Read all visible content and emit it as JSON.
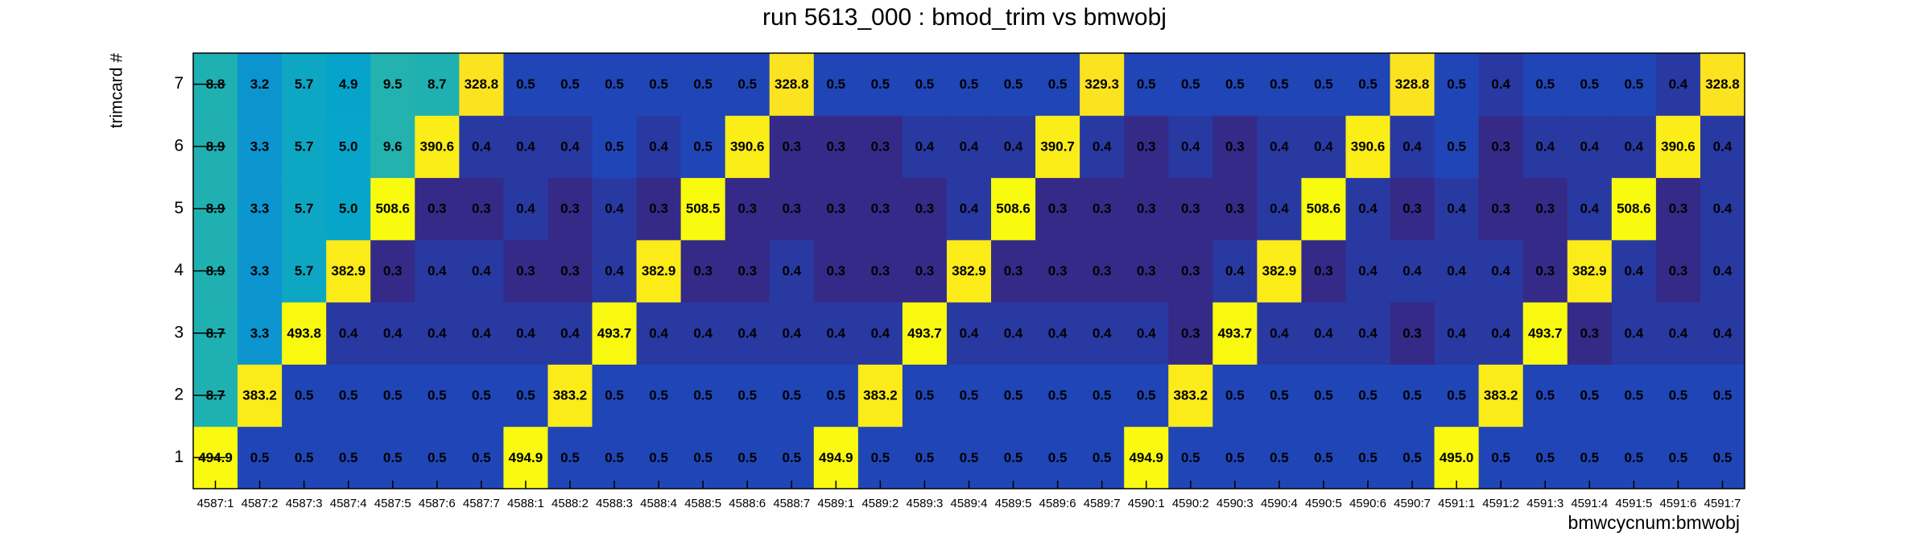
{
  "chart_data": {
    "type": "heatmap",
    "title": "run 5613_000 : bmod_trim vs bmwobj",
    "x_label": "bmwcycnum:bmwobj",
    "y_label": "trimcard #",
    "x": [
      "4587:1",
      "4587:2",
      "4587:3",
      "4587:4",
      "4587:5",
      "4587:6",
      "4587:7",
      "4588:1",
      "4588:2",
      "4588:3",
      "4588:4",
      "4588:5",
      "4588:6",
      "4588:7",
      "4589:1",
      "4589:2",
      "4589:3",
      "4589:4",
      "4589:5",
      "4589:6",
      "4589:7",
      "4590:1",
      "4590:2",
      "4590:3",
      "4590:4",
      "4590:5",
      "4590:6",
      "4590:7",
      "4591:1",
      "4591:2",
      "4591:3",
      "4591:4",
      "4591:5",
      "4591:6",
      "4591:7"
    ],
    "y": [
      1,
      2,
      3,
      4,
      5,
      6,
      7
    ],
    "log_z": true,
    "palette": [
      "#352a87",
      "#0f5cdd",
      "#1481d6",
      "#06a4ca",
      "#2eb7a4",
      "#87bf77",
      "#d1bb59",
      "#fec832",
      "#f9fb0e"
    ],
    "values": [
      [
        494.9,
        0.5,
        0.5,
        0.5,
        0.5,
        0.5,
        0.5,
        494.9,
        0.5,
        0.5,
        0.5,
        0.5,
        0.5,
        0.5,
        494.9,
        0.5,
        0.5,
        0.5,
        0.5,
        0.5,
        0.5,
        494.9,
        0.5,
        0.5,
        0.5,
        0.5,
        0.5,
        0.5,
        495.0,
        0.5,
        0.5,
        0.5,
        0.5,
        0.5,
        0.5
      ],
      [
        8.7,
        383.2,
        0.5,
        0.5,
        0.5,
        0.5,
        0.5,
        0.5,
        383.2,
        0.5,
        0.5,
        0.5,
        0.5,
        0.5,
        0.5,
        383.2,
        0.5,
        0.5,
        0.5,
        0.5,
        0.5,
        0.5,
        383.2,
        0.5,
        0.5,
        0.5,
        0.5,
        0.5,
        0.5,
        383.2,
        0.5,
        0.5,
        0.5,
        0.5,
        0.5
      ],
      [
        8.7,
        3.3,
        493.8,
        0.4,
        0.4,
        0.4,
        0.4,
        0.4,
        0.4,
        493.7,
        0.4,
        0.4,
        0.4,
        0.4,
        0.4,
        0.4,
        493.7,
        0.4,
        0.4,
        0.4,
        0.4,
        0.4,
        0.3,
        493.7,
        0.4,
        0.4,
        0.4,
        0.3,
        0.4,
        0.4,
        493.7,
        0.3,
        0.4,
        0.4,
        0.4
      ],
      [
        8.9,
        3.3,
        5.7,
        382.9,
        0.3,
        0.4,
        0.4,
        0.3,
        0.3,
        0.4,
        382.9,
        0.3,
        0.3,
        0.4,
        0.3,
        0.3,
        0.3,
        382.9,
        0.3,
        0.3,
        0.3,
        0.3,
        0.3,
        0.4,
        382.9,
        0.3,
        0.4,
        0.4,
        0.4,
        0.4,
        0.3,
        382.9,
        0.4,
        0.3,
        0.4
      ],
      [
        8.9,
        3.3,
        5.7,
        5.0,
        508.6,
        0.3,
        0.3,
        0.4,
        0.3,
        0.4,
        0.3,
        508.5,
        0.3,
        0.3,
        0.3,
        0.3,
        0.3,
        0.4,
        508.6,
        0.3,
        0.3,
        0.3,
        0.3,
        0.3,
        0.4,
        508.6,
        0.4,
        0.3,
        0.4,
        0.3,
        0.3,
        0.4,
        508.6,
        0.3,
        0.4
      ],
      [
        8.9,
        3.3,
        5.7,
        5.0,
        9.6,
        390.6,
        0.4,
        0.4,
        0.4,
        0.5,
        0.4,
        0.5,
        390.6,
        0.3,
        0.3,
        0.3,
        0.4,
        0.4,
        0.4,
        390.7,
        0.4,
        0.3,
        0.4,
        0.3,
        0.4,
        0.4,
        390.6,
        0.4,
        0.5,
        0.3,
        0.4,
        0.4,
        0.4,
        390.6,
        0.4
      ],
      [
        8.8,
        3.2,
        5.7,
        4.9,
        9.5,
        8.7,
        328.8,
        0.5,
        0.5,
        0.5,
        0.5,
        0.5,
        0.5,
        328.8,
        0.5,
        0.5,
        0.5,
        0.5,
        0.5,
        0.5,
        329.3,
        0.5,
        0.5,
        0.5,
        0.5,
        0.5,
        0.5,
        328.8,
        0.5,
        0.4,
        0.5,
        0.5,
        0.5,
        0.4,
        328.8
      ]
    ],
    "value_labels": [
      [
        "494.9",
        "0.5",
        "0.5",
        "0.5",
        "0.5",
        "0.5",
        "0.5",
        "494.9",
        "0.5",
        "0.5",
        "0.5",
        "0.5",
        "0.5",
        "0.5",
        "494.9",
        "0.5",
        "0.5",
        "0.5",
        "0.5",
        "0.5",
        "0.5",
        "494.9",
        "0.5",
        "0.5",
        "0.5",
        "0.5",
        "0.5",
        "0.5",
        "495.0",
        "0.5",
        "0.5",
        "0.5",
        "0.5",
        "0.5",
        "0.5"
      ],
      [
        "8.7",
        "383.2",
        "0.5",
        "0.5",
        "0.5",
        "0.5",
        "0.5",
        "0.5",
        "383.2",
        "0.5",
        "0.5",
        "0.5",
        "0.5",
        "0.5",
        "0.5",
        "383.2",
        "0.5",
        "0.5",
        "0.5",
        "0.5",
        "0.5",
        "0.5",
        "383.2",
        "0.5",
        "0.5",
        "0.5",
        "0.5",
        "0.5",
        "0.5",
        "383.2",
        "0.5",
        "0.5",
        "0.5",
        "0.5",
        "0.5"
      ],
      [
        "8.7",
        "3.3",
        "493.8",
        "0.4",
        "0.4",
        "0.4",
        "0.4",
        "0.4",
        "0.4",
        "493.7",
        "0.4",
        "0.4",
        "0.4",
        "0.4",
        "0.4",
        "0.4",
        "493.7",
        "0.4",
        "0.4",
        "0.4",
        "0.4",
        "0.4",
        "0.3",
        "493.7",
        "0.4",
        "0.4",
        "0.4",
        "0.3",
        "0.4",
        "0.4",
        "493.7",
        "0.3",
        "0.4",
        "0.4",
        "0.4"
      ],
      [
        "8.9",
        "3.3",
        "5.7",
        "382.9",
        "0.3",
        "0.4",
        "0.4",
        "0.3",
        "0.3",
        "0.4",
        "382.9",
        "0.3",
        "0.3",
        "0.4",
        "0.3",
        "0.3",
        "0.3",
        "382.9",
        "0.3",
        "0.3",
        "0.3",
        "0.3",
        "0.3",
        "0.4",
        "382.9",
        "0.3",
        "0.4",
        "0.4",
        "0.4",
        "0.4",
        "0.3",
        "382.9",
        "0.4",
        "0.3",
        "0.4"
      ],
      [
        "8.9",
        "3.3",
        "5.7",
        "5.0",
        "508.6",
        "0.3",
        "0.3",
        "0.4",
        "0.3",
        "0.4",
        "0.3",
        "508.5",
        "0.3",
        "0.3",
        "0.3",
        "0.3",
        "0.3",
        "0.4",
        "508.6",
        "0.3",
        "0.3",
        "0.3",
        "0.3",
        "0.3",
        "0.4",
        "508.6",
        "0.4",
        "0.3",
        "0.4",
        "0.3",
        "0.3",
        "0.4",
        "508.6",
        "0.3",
        "0.4"
      ],
      [
        "8.9",
        "3.3",
        "5.7",
        "5.0",
        "9.6",
        "390.6",
        "0.4",
        "0.4",
        "0.4",
        "0.5",
        "0.4",
        "0.5",
        "390.6",
        "0.3",
        "0.3",
        "0.3",
        "0.4",
        "0.4",
        "0.4",
        "390.7",
        "0.4",
        "0.3",
        "0.4",
        "0.3",
        "0.4",
        "0.4",
        "390.6",
        "0.4",
        "0.5",
        "0.3",
        "0.4",
        "0.4",
        "0.4",
        "390.6",
        "0.4"
      ],
      [
        "8.8",
        "3.2",
        "5.7",
        "4.9",
        "9.5",
        "8.7",
        "328.8",
        "0.5",
        "0.5",
        "0.5",
        "0.5",
        "0.5",
        "0.5",
        "328.8",
        "0.5",
        "0.5",
        "0.5",
        "0.5",
        "0.5",
        "0.5",
        "329.3",
        "0.5",
        "0.5",
        "0.5",
        "0.5",
        "0.5",
        "0.5",
        "328.8",
        "0.5",
        "0.4",
        "0.5",
        "0.5",
        "0.5",
        "0.4",
        "328.8"
      ]
    ]
  }
}
